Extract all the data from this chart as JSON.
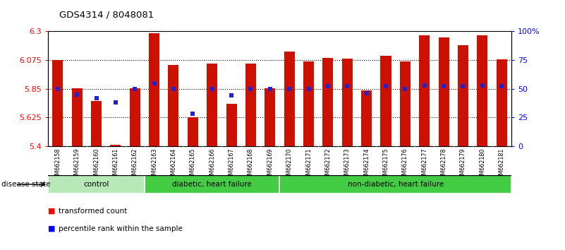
{
  "title": "GDS4314 / 8048081",
  "samples": [
    "GSM662158",
    "GSM662159",
    "GSM662160",
    "GSM662161",
    "GSM662162",
    "GSM662163",
    "GSM662164",
    "GSM662165",
    "GSM662166",
    "GSM662167",
    "GSM662168",
    "GSM662169",
    "GSM662170",
    "GSM662171",
    "GSM662172",
    "GSM662173",
    "GSM662174",
    "GSM662175",
    "GSM662176",
    "GSM662177",
    "GSM662178",
    "GSM662179",
    "GSM662180",
    "GSM662181"
  ],
  "transformed_counts": [
    6.075,
    5.855,
    5.755,
    5.41,
    5.855,
    6.285,
    6.035,
    5.625,
    6.045,
    5.73,
    6.045,
    5.855,
    6.14,
    6.065,
    6.09,
    6.085,
    5.835,
    6.11,
    6.065,
    6.27,
    6.25,
    6.19,
    6.27,
    6.08
  ],
  "percentile_pcts": [
    50,
    45,
    42,
    38,
    50,
    55,
    50,
    28,
    50,
    44,
    50,
    50,
    50,
    50,
    52,
    52,
    46,
    52,
    50,
    53,
    52,
    52,
    53,
    52
  ],
  "group_configs": [
    {
      "start": 0,
      "end": 4,
      "color": "#b8e8b8",
      "label": "control"
    },
    {
      "start": 5,
      "end": 11,
      "color": "#44cc44",
      "label": "diabetic, heart failure"
    },
    {
      "start": 12,
      "end": 23,
      "color": "#44cc44",
      "label": "non-diabetic, heart failure"
    }
  ],
  "ylim_left": [
    5.4,
    6.3
  ],
  "ylim_right": [
    0,
    100
  ],
  "yticks_left": [
    5.4,
    5.625,
    5.85,
    6.075,
    6.3
  ],
  "ytick_labels_left": [
    "5.4",
    "5.625",
    "5.85",
    "6.075",
    "6.3"
  ],
  "yticks_right": [
    0,
    25,
    50,
    75,
    100
  ],
  "ytick_labels_right": [
    "0",
    "25",
    "50",
    "75",
    "100%"
  ],
  "bar_color": "#cc1100",
  "percentile_color": "#2222cc",
  "grid_lines": [
    5.625,
    5.85,
    6.075
  ],
  "xtick_bg": "#cccccc"
}
